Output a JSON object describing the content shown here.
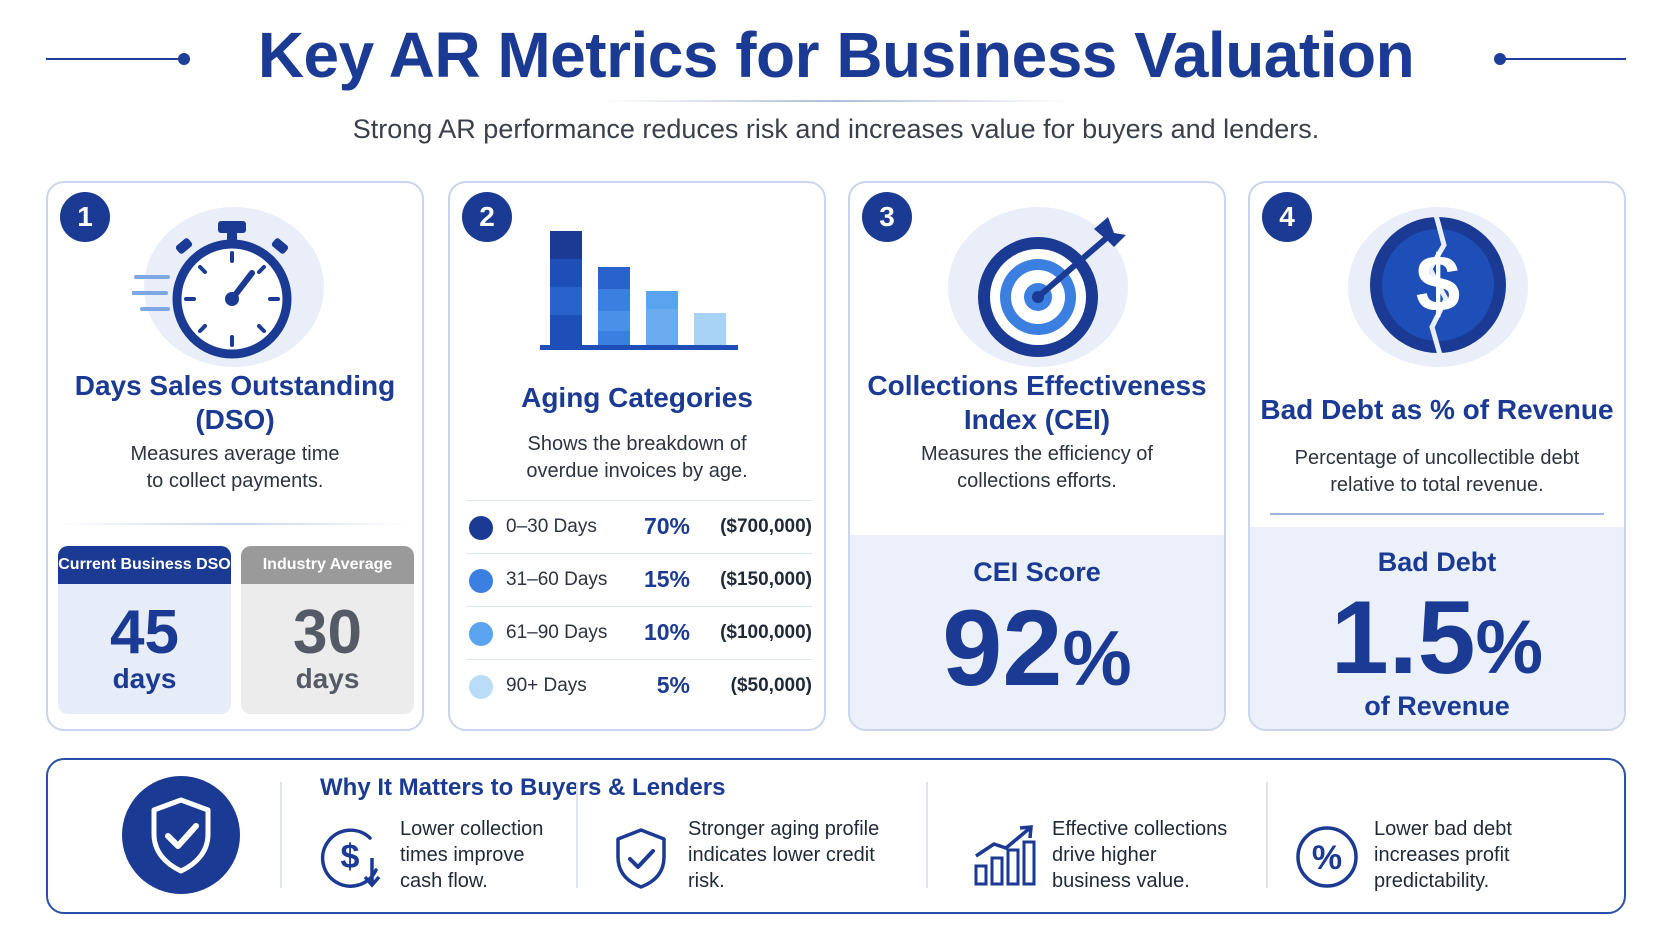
{
  "header": {
    "title": "Key AR Metrics for Business Valuation",
    "subtitle": "Strong AR performance reduces risk and increases value for buyers and lenders."
  },
  "colors": {
    "primary": "#1a3a94",
    "accent": "#2f6fd8",
    "light_panel": "#ebf0fa",
    "gray_badge": "#9a9a9a"
  },
  "cards": [
    {
      "number": "1",
      "icon": "stopwatch-icon",
      "title_line1": "Days Sales Outstanding",
      "title_line2": "(DSO)",
      "desc_line1": "Measures average time",
      "desc_line2": "to collect payments.",
      "current": {
        "label": "Current Business DSO",
        "value": "45",
        "unit": "days"
      },
      "industry": {
        "label": "Industry Average",
        "value": "30",
        "unit": "days"
      }
    },
    {
      "number": "2",
      "icon": "bar-chart-icon",
      "title": "Aging Categories",
      "desc_line1": "Shows the breakdown of",
      "desc_line2": "overdue invoices by age.",
      "rows": [
        {
          "label": "0–30 Days",
          "pct": "70%",
          "amount": "($700,000)",
          "color": "#1a3a94"
        },
        {
          "label": "31–60 Days",
          "pct": "15%",
          "amount": "($150,000)",
          "color": "#3b7fe0"
        },
        {
          "label": "61–90 Days",
          "pct": "10%",
          "amount": "($100,000)",
          "color": "#5aa3ee"
        },
        {
          "label": "90+ Days",
          "pct": "5%",
          "amount": "($50,000)",
          "color": "#b9dcf7"
        }
      ]
    },
    {
      "number": "3",
      "icon": "target-icon",
      "title_line1": "Collections Effectiveness",
      "title_line2": "Index (CEI)",
      "desc_line1": "Measures the efficiency of",
      "desc_line2": "collections efforts.",
      "score_label": "CEI Score",
      "score_value": "92",
      "score_unit": "%"
    },
    {
      "number": "4",
      "icon": "dollar-coin-icon",
      "title": "Bad Debt as % of Revenue",
      "desc_line1": "Percentage of uncollectible debt",
      "desc_line2": "relative to total revenue.",
      "score_label": "Bad Debt",
      "score_value": "1.5",
      "score_unit": "%",
      "score_caption": "of Revenue"
    }
  ],
  "why": {
    "title": "Why It Matters to Buyers & Lenders",
    "items": [
      {
        "icon": "dollar-down-icon",
        "line1": "Lower collection",
        "line2": "times improve",
        "line3": "cash flow."
      },
      {
        "icon": "shield-check-icon",
        "line1": "Stronger aging profile",
        "line2": "indicates lower credit",
        "line3": "risk."
      },
      {
        "icon": "growth-chart-icon",
        "line1": "Effective collections",
        "line2": "drive higher",
        "line3": "business value."
      },
      {
        "icon": "percent-icon",
        "line1": "Lower bad debt",
        "line2": "increases profit",
        "line3": "predictability."
      }
    ]
  }
}
